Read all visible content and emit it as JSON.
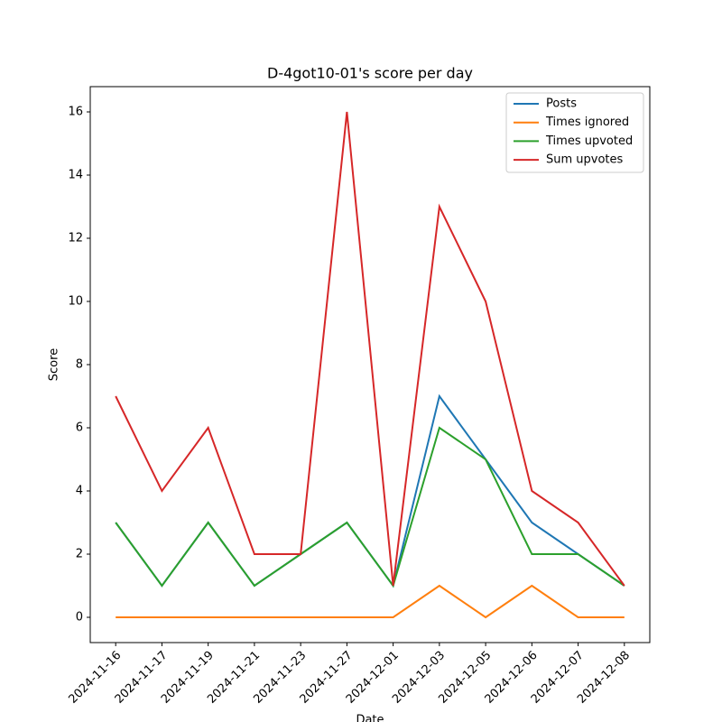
{
  "chart_data": {
    "type": "line",
    "title": "D-4got10-01's score per day",
    "xlabel": "Date",
    "ylabel": "Score",
    "categories": [
      "2024-11-16",
      "2024-11-17",
      "2024-11-19",
      "2024-11-21",
      "2024-11-23",
      "2024-11-27",
      "2024-12-01",
      "2024-12-03",
      "2024-12-05",
      "2024-12-06",
      "2024-12-07",
      "2024-12-08"
    ],
    "series": [
      {
        "name": "Posts",
        "color": "#1f77b4",
        "values": [
          3,
          1,
          3,
          1,
          2,
          3,
          1,
          7,
          5,
          3,
          2,
          1
        ]
      },
      {
        "name": "Times ignored",
        "color": "#ff7f0e",
        "values": [
          0,
          0,
          0,
          0,
          0,
          0,
          0,
          1,
          0,
          1,
          0,
          0
        ]
      },
      {
        "name": "Times upvoted",
        "color": "#2ca02c",
        "values": [
          3,
          1,
          3,
          1,
          2,
          3,
          1,
          6,
          5,
          2,
          2,
          1
        ]
      },
      {
        "name": "Sum upvotes",
        "color": "#d62728",
        "values": [
          7,
          4,
          6,
          2,
          2,
          16,
          1,
          13,
          10,
          4,
          3,
          1
        ]
      }
    ],
    "ylim": [
      -0.8,
      16.8
    ],
    "yticks": [
      0,
      2,
      4,
      6,
      8,
      10,
      12,
      14,
      16
    ],
    "legend": "upper right"
  }
}
